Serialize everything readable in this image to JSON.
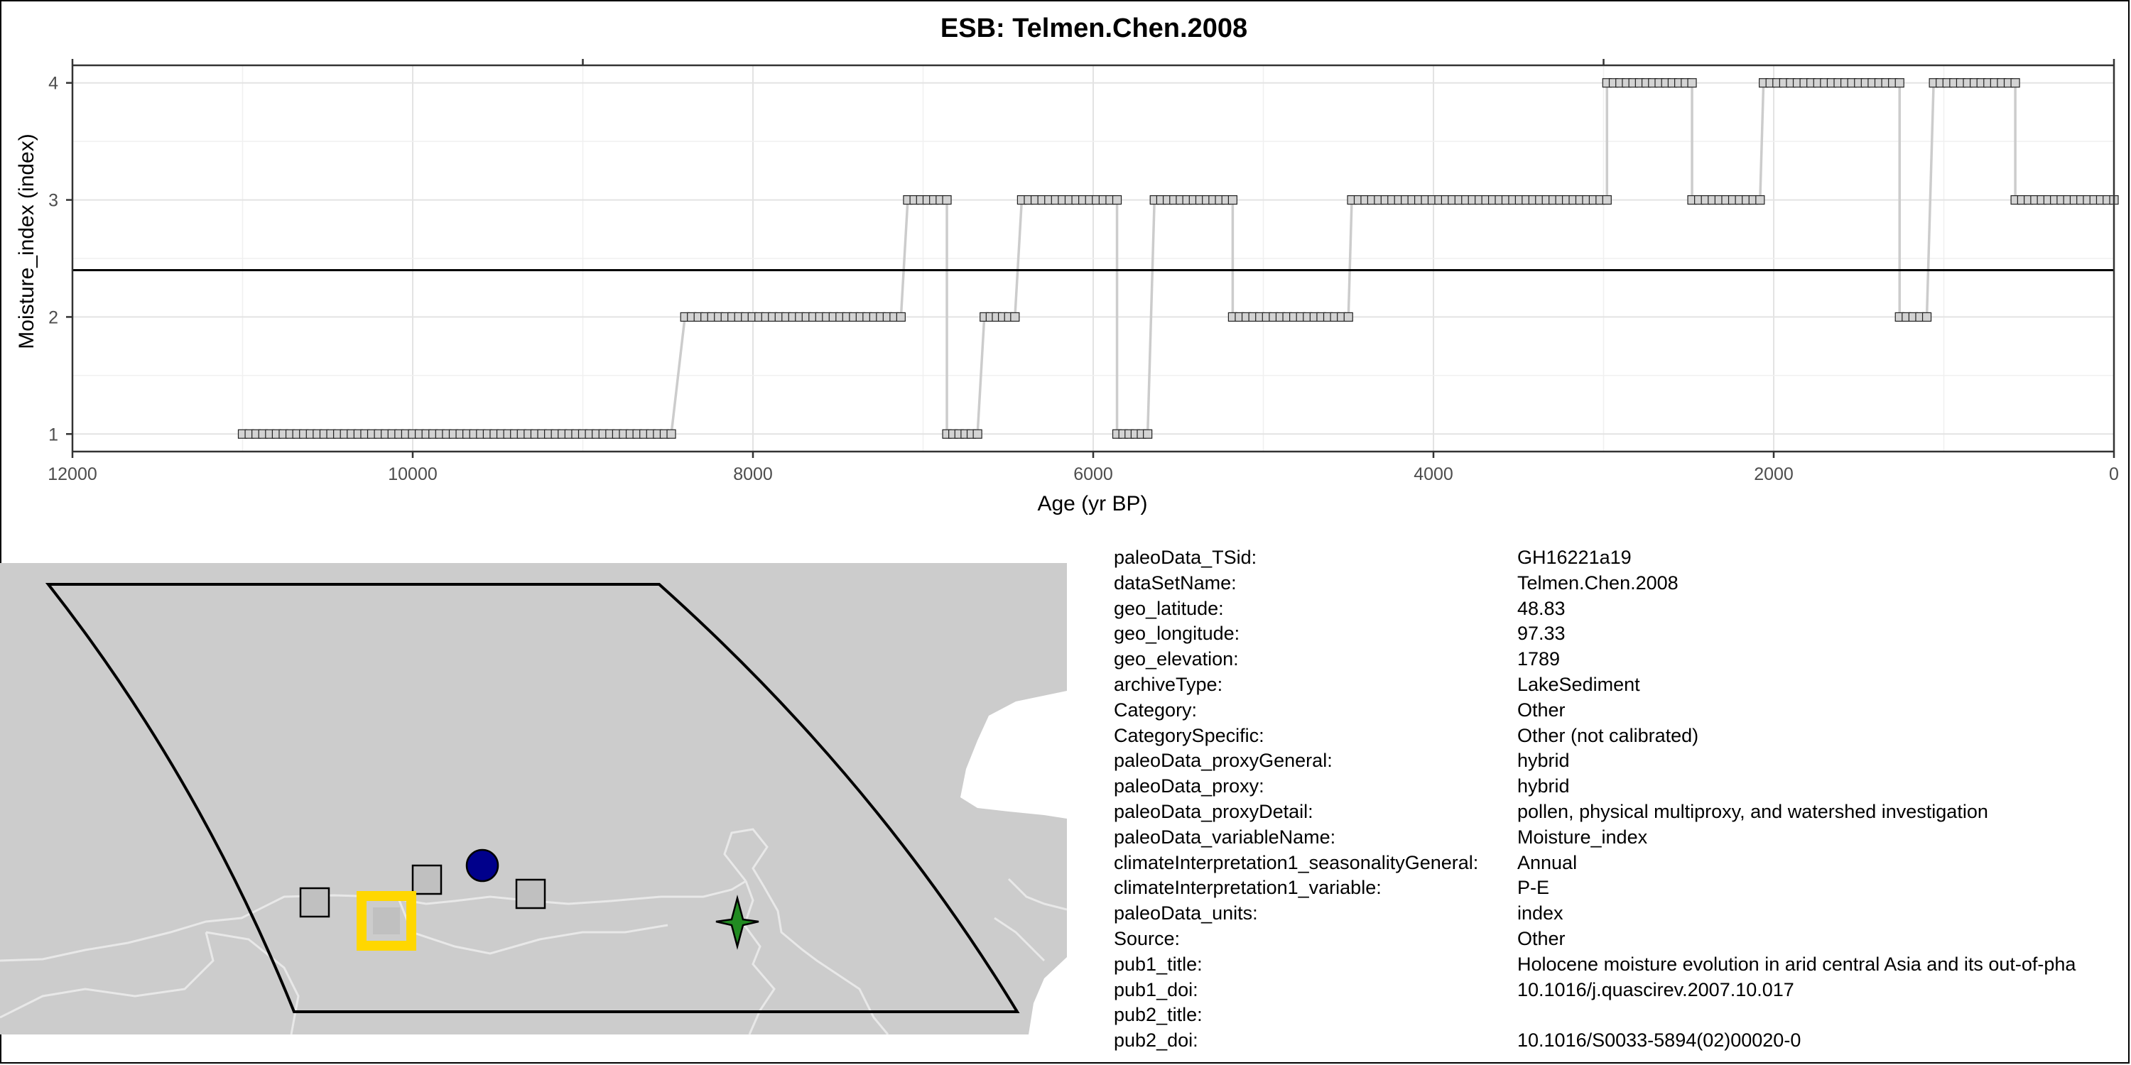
{
  "chart_data": {
    "type": "line",
    "title": "ESB: Telmen.Chen.2008",
    "xlabel": "Age (yr BP)",
    "ylabel": "Moisture_index (index)",
    "xlim": [
      12000,
      0
    ],
    "ylim": [
      0.85,
      4.15
    ],
    "x_ticks": [
      12000,
      10000,
      8000,
      6000,
      4000,
      2000,
      0
    ],
    "y_ticks": [
      1,
      2,
      3,
      4
    ],
    "grid": true,
    "reference_line": 2.4,
    "segments": [
      {
        "x_start": 11000,
        "x_end": 8480,
        "y": 1
      },
      {
        "x_start": 8400,
        "x_end": 7130,
        "y": 2
      },
      {
        "x_start": 7090,
        "x_end": 6860,
        "y": 3
      },
      {
        "x_start": 6860,
        "x_end": 6680,
        "y": 1
      },
      {
        "x_start": 6640,
        "x_end": 6460,
        "y": 2
      },
      {
        "x_start": 6420,
        "x_end": 5860,
        "y": 3
      },
      {
        "x_start": 5860,
        "x_end": 5680,
        "y": 1
      },
      {
        "x_start": 5640,
        "x_end": 5180,
        "y": 3
      },
      {
        "x_start": 5180,
        "x_end": 4500,
        "y": 2
      },
      {
        "x_start": 4480,
        "x_end": 2980,
        "y": 3
      },
      {
        "x_start": 2980,
        "x_end": 2480,
        "y": 4
      },
      {
        "x_start": 2480,
        "x_end": 2080,
        "y": 3
      },
      {
        "x_start": 2060,
        "x_end": 1260,
        "y": 4
      },
      {
        "x_start": 1260,
        "x_end": 1100,
        "y": 2
      },
      {
        "x_start": 1060,
        "x_end": 580,
        "y": 4
      },
      {
        "x_start": 580,
        "x_end": 0,
        "y": 3
      }
    ],
    "point_spacing": 40,
    "colors": {
      "line": "#cccccc",
      "point_fill": "#d3d3d3",
      "point_stroke": "#222222",
      "reference": "#000000"
    }
  },
  "map": {
    "colors": {
      "land": "#cccccc",
      "water": "#ffffff",
      "border": "#e6e6e6",
      "region": "#000000",
      "site": "#c0c0c0",
      "highlight": "#ffd700",
      "circle": "#00008b",
      "star": "#228b22"
    }
  },
  "metadata": [
    {
      "key": "paleoData_TSid:",
      "value": "GH16221a19"
    },
    {
      "key": "dataSetName:",
      "value": "Telmen.Chen.2008"
    },
    {
      "key": "geo_latitude:",
      "value": "48.83"
    },
    {
      "key": "geo_longitude:",
      "value": "97.33"
    },
    {
      "key": "geo_elevation:",
      "value": "1789"
    },
    {
      "key": "archiveType:",
      "value": "LakeSediment"
    },
    {
      "key": "Category:",
      "value": "Other"
    },
    {
      "key": "CategorySpecific:",
      "value": "Other (not calibrated)"
    },
    {
      "key": "paleoData_proxyGeneral:",
      "value": "hybrid"
    },
    {
      "key": "paleoData_proxy:",
      "value": "hybrid"
    },
    {
      "key": "paleoData_proxyDetail:",
      "value": "pollen, physical multiproxy, and watershed investigation"
    },
    {
      "key": "paleoData_variableName:",
      "value": "Moisture_index"
    },
    {
      "key": "climateInterpretation1_seasonalityGeneral:",
      "value": "Annual"
    },
    {
      "key": "climateInterpretation1_variable:",
      "value": "P-E"
    },
    {
      "key": "paleoData_units:",
      "value": "index"
    },
    {
      "key": "Source:",
      "value": "Other"
    },
    {
      "key": "pub1_title:",
      "value": "Holocene moisture evolution in arid central Asia and its out-of-pha"
    },
    {
      "key": "pub1_doi:",
      "value": "10.1016/j.quascirev.2007.10.017"
    },
    {
      "key": "pub2_title:",
      "value": ""
    },
    {
      "key": "pub2_doi:",
      "value": "10.1016/S0033-5894(02)00020-0"
    }
  ]
}
